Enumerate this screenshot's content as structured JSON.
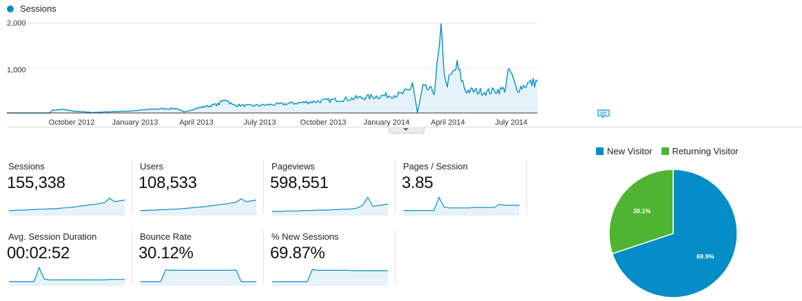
{
  "colors": {
    "series": "#058dc7",
    "fill": "#e6f2f9",
    "new_visitor": "#058dc7",
    "returning_visitor": "#50b432"
  },
  "chart_data": [
    {
      "type": "area",
      "series": [
        {
          "name": "Sessions"
        }
      ],
      "y_ticks": [
        "2,000",
        "1,000"
      ],
      "ylim": [
        0,
        2000
      ],
      "x_ticks": [
        "October 2012",
        "January 2013",
        "April 2013",
        "July 2013",
        "October 2013",
        "January 2014",
        "April 2014",
        "July 2014"
      ],
      "xlim": [
        "2012-08-01",
        "2014-08-31"
      ],
      "grid": true,
      "points": [
        [
          "2012-08-01",
          0
        ],
        [
          "2012-10-01",
          0
        ],
        [
          "2012-10-05",
          60
        ],
        [
          "2012-10-20",
          80
        ],
        [
          "2012-11-05",
          40
        ],
        [
          "2012-12-01",
          10
        ],
        [
          "2013-01-01",
          30
        ],
        [
          "2013-02-01",
          50
        ],
        [
          "2013-03-01",
          90
        ],
        [
          "2013-04-01",
          100
        ],
        [
          "2013-04-12",
          20
        ],
        [
          "2013-05-01",
          110
        ],
        [
          "2013-06-01",
          200
        ],
        [
          "2013-06-10",
          320
        ],
        [
          "2013-06-20",
          180
        ],
        [
          "2013-07-15",
          160
        ],
        [
          "2013-09-01",
          200
        ],
        [
          "2013-10-20",
          260
        ],
        [
          "2013-11-20",
          300
        ],
        [
          "2013-12-20",
          340
        ],
        [
          "2014-01-20",
          380
        ],
        [
          "2014-02-15",
          410
        ],
        [
          "2014-03-01",
          500
        ],
        [
          "2014-03-05",
          700
        ],
        [
          "2014-03-12",
          10
        ],
        [
          "2014-03-20",
          560
        ],
        [
          "2014-04-05",
          480
        ],
        [
          "2014-04-15",
          1720
        ],
        [
          "2014-04-22",
          620
        ],
        [
          "2014-05-08",
          1040
        ],
        [
          "2014-05-20",
          500
        ],
        [
          "2014-06-20",
          470
        ],
        [
          "2014-07-15",
          530
        ],
        [
          "2014-07-22",
          960
        ],
        [
          "2014-08-01",
          520
        ],
        [
          "2014-08-15",
          640
        ],
        [
          "2014-08-31",
          700
        ]
      ]
    },
    {
      "type": "pie",
      "categories": [
        "New Visitor",
        "Returning Visitor"
      ],
      "values": [
        69.9,
        30.1
      ],
      "labels": [
        "69.9%",
        "30.1%"
      ]
    }
  ],
  "metrics": [
    {
      "label": "Sessions",
      "value": "155,338",
      "spark": [
        10,
        10,
        11,
        11,
        12,
        12,
        13,
        13,
        14,
        14,
        15,
        16,
        17,
        18,
        20,
        21,
        23,
        24,
        26,
        28,
        38,
        30,
        32,
        34
      ]
    },
    {
      "label": "Users",
      "value": "108,533",
      "spark": [
        10,
        10,
        11,
        11,
        12,
        12,
        13,
        13,
        14,
        15,
        16,
        17,
        18,
        19,
        21,
        22,
        24,
        25,
        27,
        29,
        37,
        30,
        32,
        34
      ]
    },
    {
      "label": "Pageviews",
      "value": "598,551",
      "spark": [
        8,
        8,
        8,
        9,
        9,
        9,
        10,
        10,
        10,
        11,
        11,
        11,
        12,
        12,
        13,
        13,
        14,
        16,
        22,
        40,
        20,
        21,
        23,
        25
      ]
    },
    {
      "label": "Pages / Session",
      "value": "3.85",
      "spark": [
        10,
        10,
        10,
        10,
        10,
        10,
        10,
        40,
        18,
        16,
        16,
        16,
        16,
        16,
        17,
        17,
        17,
        17,
        17,
        24,
        22,
        22,
        22,
        22
      ]
    },
    {
      "label": "Avg. Session Duration",
      "value": "00:02:52",
      "spark": [
        8,
        8,
        8,
        8,
        8,
        8,
        40,
        14,
        12,
        12,
        12,
        12,
        12,
        12,
        12,
        12,
        12,
        12,
        12,
        12,
        13,
        13,
        13,
        13
      ]
    },
    {
      "label": "Bounce Rate",
      "value": "30.12%",
      "spark": [
        8,
        8,
        8,
        8,
        8,
        35,
        34,
        34,
        34,
        34,
        34,
        34,
        34,
        34,
        34,
        34,
        34,
        34,
        34,
        34,
        8,
        8,
        8,
        8
      ]
    },
    {
      "label": "% New Sessions",
      "value": "69.87%",
      "spark": [
        8,
        8,
        8,
        8,
        8,
        8,
        8,
        8,
        36,
        34,
        34,
        34,
        34,
        34,
        34,
        34,
        33,
        33,
        33,
        33,
        33,
        33,
        33,
        33
      ]
    }
  ]
}
